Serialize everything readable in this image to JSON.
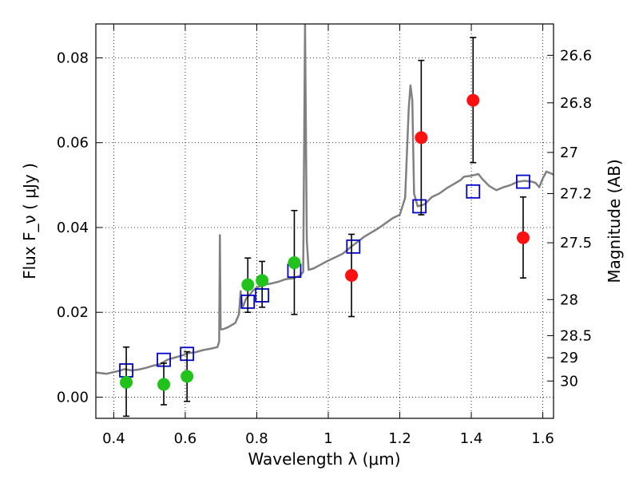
{
  "chart_data": {
    "type": "scatter",
    "xlabel": "Wavelength  λ (μm)",
    "ylabel": "Flux  F_ν  ( μJy )",
    "ylabel_right": "Magnitude (AB)",
    "xlim": [
      0.35,
      1.63
    ],
    "ylim": [
      -0.005,
      0.088
    ],
    "grid": true,
    "x_ticks": [
      0.4,
      0.6,
      0.8,
      1.0,
      1.2,
      1.4,
      1.6
    ],
    "x_tick_labels": [
      "0.4",
      "0.6",
      "0.8",
      "1",
      "1.2",
      "1.4",
      "1.6"
    ],
    "y_ticks": [
      0.0,
      0.02,
      0.04,
      0.06,
      0.08
    ],
    "y_tick_labels": [
      "0.00",
      "0.02",
      "0.04",
      "0.06",
      "0.08"
    ],
    "right_ticks": [
      {
        "label": "26.6",
        "flux": 0.0806
      },
      {
        "label": "26.8",
        "flux": 0.0694
      },
      {
        "label": "27",
        "flux": 0.0577
      },
      {
        "label": "27.2",
        "flux": 0.048
      },
      {
        "label": "27.5",
        "flux": 0.0364
      },
      {
        "label": "28",
        "flux": 0.023
      },
      {
        "label": "28.5",
        "flux": 0.0145
      },
      {
        "label": "29",
        "flux": 0.0093
      },
      {
        "label": "30",
        "flux": 0.0038
      }
    ],
    "series": [
      {
        "name": "model_spectrum",
        "kind": "line",
        "color": "#808080",
        "points": [
          [
            0.35,
            0.0058
          ],
          [
            0.38,
            0.0055
          ],
          [
            0.41,
            0.0061
          ],
          [
            0.43,
            0.0066
          ],
          [
            0.45,
            0.0063
          ],
          [
            0.47,
            0.0065
          ],
          [
            0.49,
            0.0069
          ],
          [
            0.51,
            0.0074
          ],
          [
            0.53,
            0.0078
          ],
          [
            0.55,
            0.0088
          ],
          [
            0.57,
            0.0093
          ],
          [
            0.59,
            0.0098
          ],
          [
            0.61,
            0.0104
          ],
          [
            0.63,
            0.0106
          ],
          [
            0.65,
            0.0111
          ],
          [
            0.67,
            0.0114
          ],
          [
            0.69,
            0.0118
          ],
          [
            0.695,
            0.0131
          ],
          [
            0.697,
            0.0382
          ],
          [
            0.699,
            0.016
          ],
          [
            0.705,
            0.016
          ],
          [
            0.72,
            0.0165
          ],
          [
            0.74,
            0.0175
          ],
          [
            0.75,
            0.0195
          ],
          [
            0.755,
            0.025
          ],
          [
            0.76,
            0.021
          ],
          [
            0.77,
            0.0232
          ],
          [
            0.78,
            0.0241
          ],
          [
            0.79,
            0.0252
          ],
          [
            0.8,
            0.0258
          ],
          [
            0.82,
            0.0265
          ],
          [
            0.84,
            0.0268
          ],
          [
            0.86,
            0.0272
          ],
          [
            0.88,
            0.0278
          ],
          [
            0.9,
            0.028
          ],
          [
            0.92,
            0.0286
          ],
          [
            0.93,
            0.0295
          ],
          [
            0.935,
            0.088
          ],
          [
            0.94,
            0.037
          ],
          [
            0.945,
            0.03
          ],
          [
            0.96,
            0.0304
          ],
          [
            0.98,
            0.0313
          ],
          [
            1.0,
            0.0322
          ],
          [
            1.02,
            0.033
          ],
          [
            1.04,
            0.0338
          ],
          [
            1.06,
            0.0352
          ],
          [
            1.08,
            0.0365
          ],
          [
            1.1,
            0.0378
          ],
          [
            1.12,
            0.0388
          ],
          [
            1.14,
            0.0398
          ],
          [
            1.16,
            0.041
          ],
          [
            1.18,
            0.0422
          ],
          [
            1.2,
            0.043
          ],
          [
            1.215,
            0.047
          ],
          [
            1.225,
            0.068
          ],
          [
            1.23,
            0.0735
          ],
          [
            1.235,
            0.07
          ],
          [
            1.24,
            0.048
          ],
          [
            1.25,
            0.045
          ],
          [
            1.27,
            0.0455
          ],
          [
            1.29,
            0.0472
          ],
          [
            1.31,
            0.048
          ],
          [
            1.33,
            0.0492
          ],
          [
            1.35,
            0.0502
          ],
          [
            1.37,
            0.0512
          ],
          [
            1.38,
            0.052
          ],
          [
            1.4,
            0.0522
          ],
          [
            1.42,
            0.0526
          ],
          [
            1.43,
            0.0515
          ],
          [
            1.45,
            0.0498
          ],
          [
            1.47,
            0.0488
          ],
          [
            1.49,
            0.0495
          ],
          [
            1.51,
            0.05
          ],
          [
            1.53,
            0.0508
          ],
          [
            1.55,
            0.051
          ],
          [
            1.57,
            0.0508
          ],
          [
            1.58,
            0.0505
          ],
          [
            1.59,
            0.0495
          ],
          [
            1.6,
            0.0516
          ],
          [
            1.61,
            0.0532
          ],
          [
            1.63,
            0.0525
          ]
        ]
      },
      {
        "name": "model_photometry",
        "kind": "square",
        "color": "#0000cc",
        "points": [
          [
            0.435,
            0.0063
          ],
          [
            0.54,
            0.0088
          ],
          [
            0.605,
            0.0102
          ],
          [
            0.775,
            0.0225
          ],
          [
            0.815,
            0.024
          ],
          [
            0.905,
            0.0298
          ],
          [
            1.07,
            0.0355
          ],
          [
            1.255,
            0.045
          ],
          [
            1.405,
            0.0485
          ],
          [
            1.545,
            0.0508
          ]
        ]
      },
      {
        "name": "detections",
        "kind": "circle",
        "color": "#21c21c",
        "points": [
          [
            0.435,
            0.0035
          ],
          [
            0.54,
            0.003
          ],
          [
            0.605,
            0.0049
          ],
          [
            0.775,
            0.0265
          ],
          [
            0.815,
            0.0275
          ],
          [
            0.905,
            0.0317
          ]
        ]
      },
      {
        "name": "red_points",
        "kind": "circle",
        "color": "#ff1111",
        "points": [
          [
            1.065,
            0.0287
          ],
          [
            1.26,
            0.0612
          ],
          [
            1.405,
            0.07
          ],
          [
            1.545,
            0.0376
          ]
        ]
      }
    ],
    "error_bars": [
      {
        "x": 0.435,
        "low": -0.0045,
        "high": 0.0118
      },
      {
        "x": 0.54,
        "low": -0.0018,
        "high": 0.008
      },
      {
        "x": 0.605,
        "low": -0.001,
        "high": 0.0107
      },
      {
        "x": 0.775,
        "low": 0.02,
        "high": 0.0328
      },
      {
        "x": 0.815,
        "low": 0.0212,
        "high": 0.032
      },
      {
        "x": 0.905,
        "low": 0.0195,
        "high": 0.044
      },
      {
        "x": 1.065,
        "low": 0.019,
        "high": 0.0384
      },
      {
        "x": 1.26,
        "low": 0.043,
        "high": 0.0794
      },
      {
        "x": 1.405,
        "low": 0.0553,
        "high": 0.0848
      },
      {
        "x": 1.545,
        "low": 0.0281,
        "high": 0.0472
      }
    ]
  }
}
